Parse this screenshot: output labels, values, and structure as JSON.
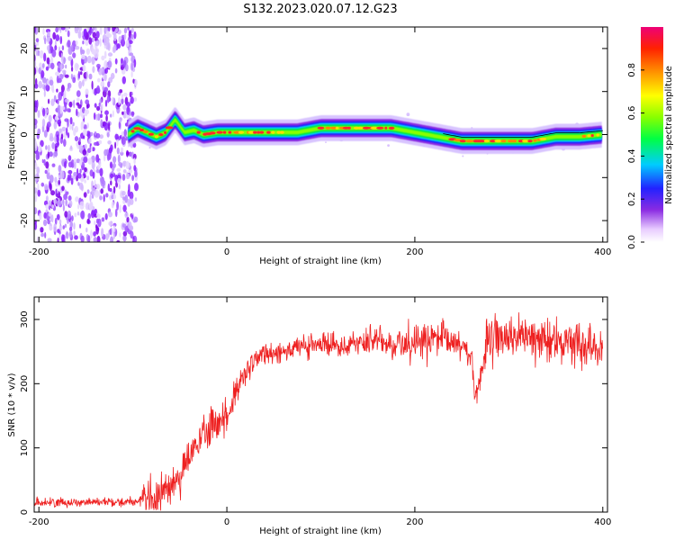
{
  "title": "S132.2023.020.07.12.G23",
  "chart_data": [
    {
      "type": "heatmap",
      "xlabel": "Height of straight line (km)",
      "ylabel": "Frequency (Hz)",
      "xlim": [
        -205,
        405
      ],
      "ylim": [
        -25,
        25
      ],
      "xticks": [
        -200,
        0,
        200,
        400
      ],
      "yticks": [
        -20,
        -10,
        0,
        10,
        20
      ],
      "noise_region_x": [
        -205,
        -100
      ],
      "signal_trace": {
        "x": [
          -105,
          -95,
          -85,
          -75,
          -65,
          -55,
          -45,
          -35,
          -25,
          -10,
          0,
          25,
          50,
          75,
          100,
          125,
          150,
          175,
          200,
          225,
          250,
          275,
          300,
          325,
          350,
          375,
          400
        ],
        "y": [
          0,
          1.5,
          0.5,
          -0.5,
          0.5,
          3.5,
          0.5,
          1,
          0,
          0.5,
          0.5,
          0.5,
          0.5,
          0.5,
          1.5,
          1.5,
          1.5,
          1.5,
          0.5,
          -0.5,
          -1.5,
          -1.5,
          -1.5,
          -1.5,
          -0.5,
          -0.5,
          0
        ]
      },
      "colorbar": {
        "label": "Normalized spectral amplitude",
        "range": [
          0,
          1
        ],
        "ticks": [
          0.0,
          0.2,
          0.4,
          0.6,
          0.8
        ],
        "tick_labels": [
          "0.0",
          "0.2",
          "0.4",
          "0.6",
          "0.8"
        ]
      }
    },
    {
      "type": "line",
      "xlabel": "Height of straight line (km)",
      "ylabel": "SNR (10 * v/v)",
      "xlim": [
        -205,
        405
      ],
      "ylim": [
        0,
        335
      ],
      "xticks": [
        -200,
        0,
        200,
        400
      ],
      "yticks": [
        0,
        100,
        200,
        300
      ],
      "color": "#ee2020",
      "series": [
        {
          "x": [
            -205,
            -180,
            -150,
            -120,
            -90,
            -75,
            -60,
            -45,
            -30,
            -20,
            -10,
            0,
            10,
            20,
            30,
            40,
            50,
            75,
            100,
            125,
            150,
            175,
            200,
            225,
            250,
            260,
            265,
            270,
            275,
            285,
            300,
            325,
            350,
            375,
            400
          ],
          "values": [
            15,
            15,
            16,
            16,
            17,
            20,
            40,
            70,
            110,
            125,
            140,
            150,
            185,
            215,
            235,
            248,
            250,
            255,
            260,
            262,
            265,
            262,
            265,
            268,
            262,
            240,
            185,
            210,
            255,
            270,
            275,
            270,
            265,
            265,
            260
          ]
        }
      ]
    }
  ]
}
